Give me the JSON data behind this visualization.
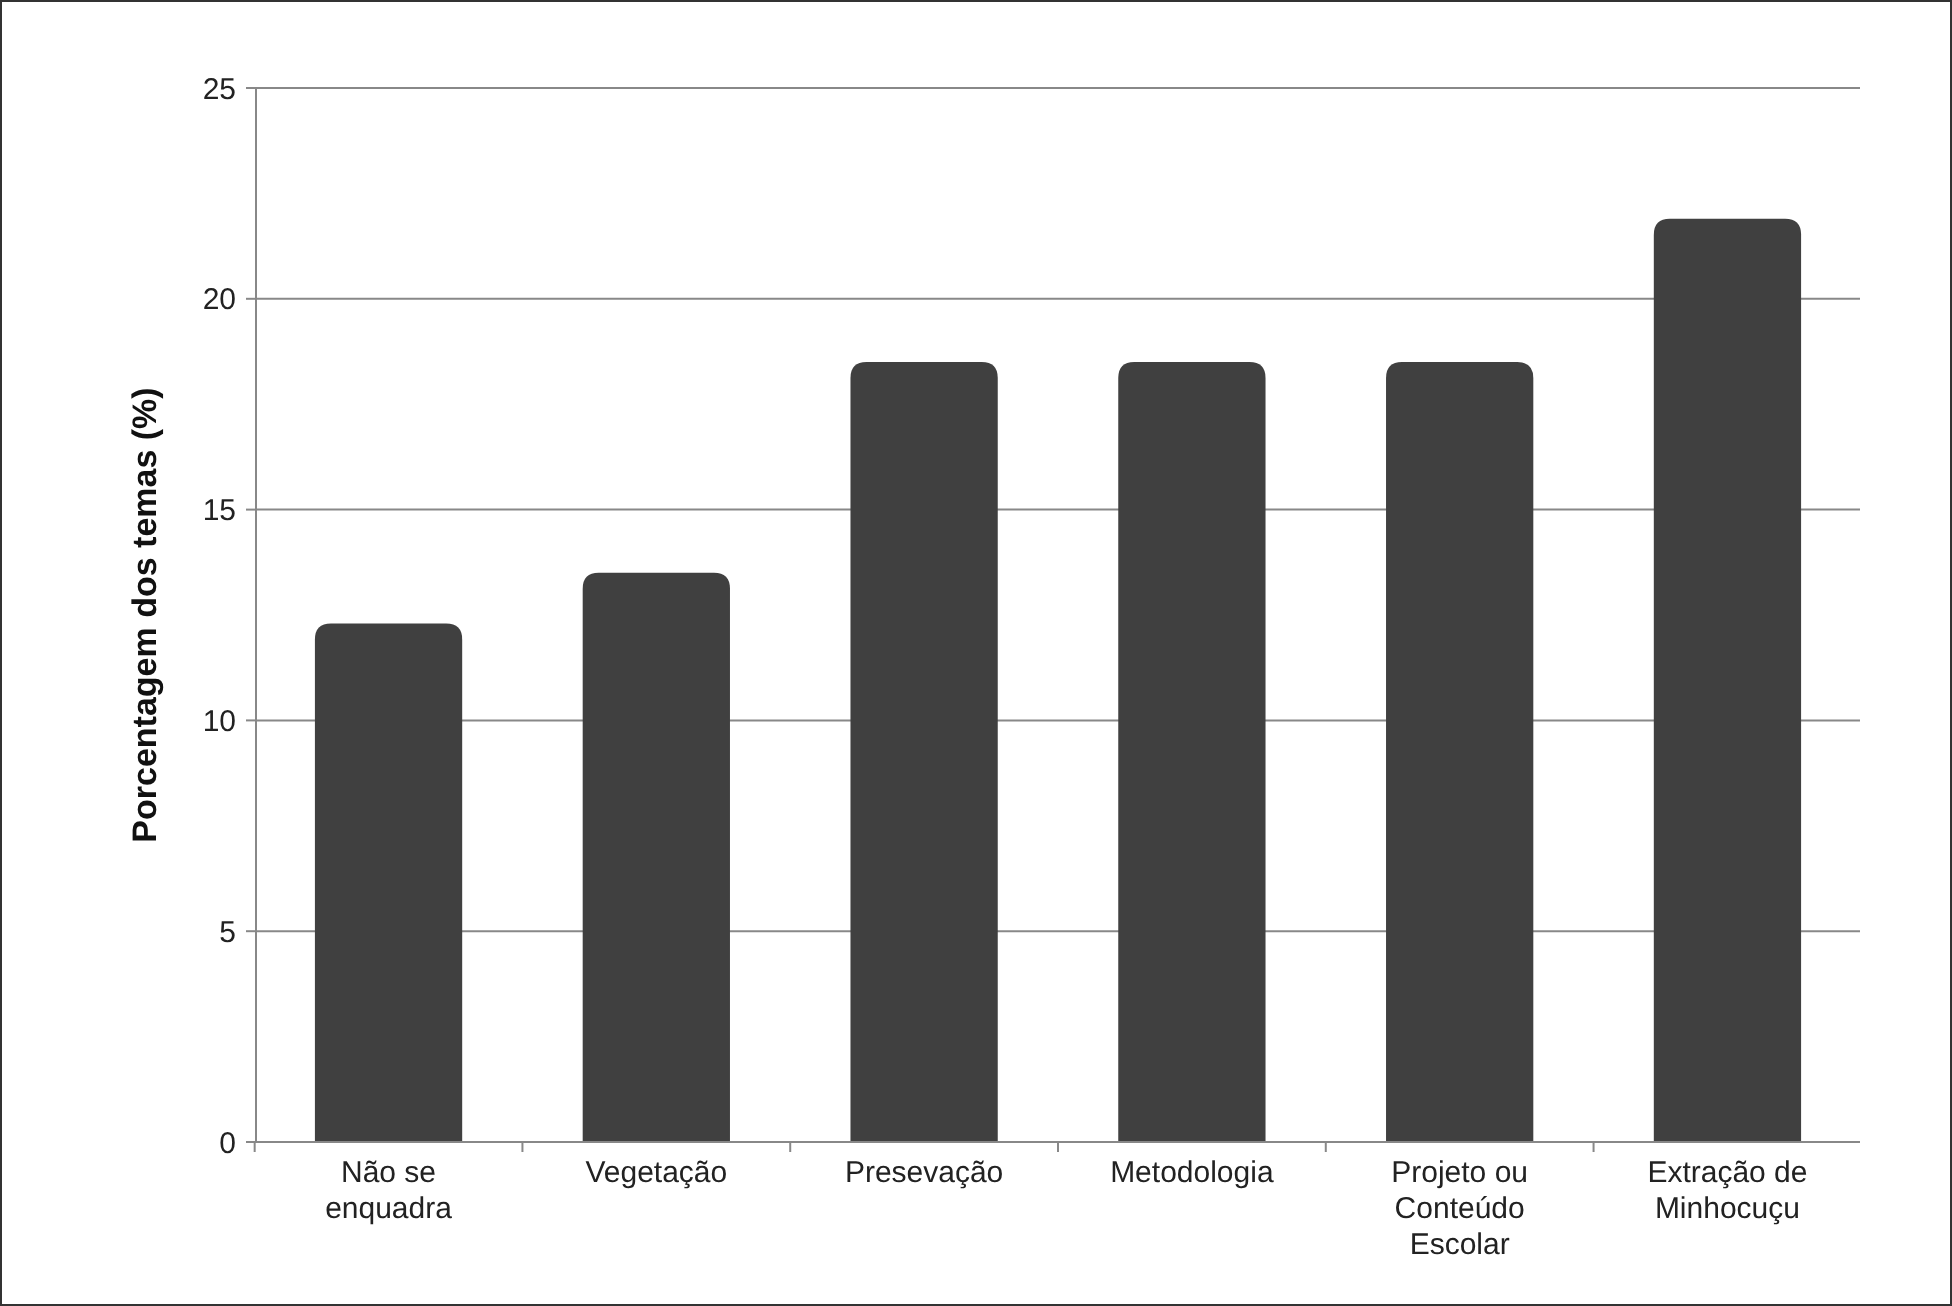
{
  "chart_data": {
    "type": "bar",
    "ylabel": "Porcentagem dos temas (%)",
    "categories": [
      "Não se enquadra",
      "Vegetação",
      "Presevação",
      "Metodologia",
      "Projeto ou Conteúdo Escolar",
      "Extração de Minhocuçu"
    ],
    "values": [
      12.3,
      13.5,
      18.5,
      18.5,
      18.5,
      21.9
    ],
    "color": "#404040",
    "ylim": [
      0,
      25
    ],
    "yticks": [
      0,
      5,
      10,
      15,
      20,
      25
    ],
    "grid": "y"
  }
}
